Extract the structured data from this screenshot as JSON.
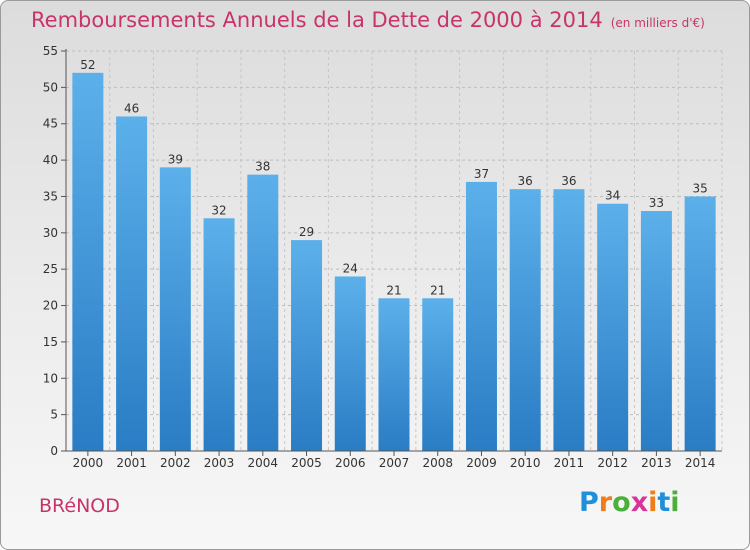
{
  "title": "Remboursements Annuels de la Dette de 2000 à 2014",
  "unit": "(en milliers d'€)",
  "town": "BRéNOD",
  "logo": {
    "letters": [
      "P",
      "r",
      "o",
      "x",
      "i",
      "t",
      "i"
    ],
    "colors": [
      "#1f8fd8",
      "#ef7d1a",
      "#4caf3a",
      "#d8349a",
      "#ef7d1a",
      "#1f8fd8",
      "#4caf3a"
    ]
  },
  "colors": {
    "accent": "#c8346a",
    "bar_top": "#5cb0ea",
    "bar_bottom": "#2a7cc4"
  },
  "chart_data": {
    "type": "bar",
    "categories": [
      "2000",
      "2001",
      "2002",
      "2003",
      "2004",
      "2005",
      "2006",
      "2007",
      "2008",
      "2009",
      "2010",
      "2011",
      "2012",
      "2013",
      "2014"
    ],
    "values": [
      52,
      46,
      39,
      32,
      38,
      29,
      24,
      21,
      21,
      37,
      36,
      36,
      34,
      33,
      35
    ],
    "yticks": [
      0,
      5,
      10,
      15,
      20,
      25,
      30,
      35,
      40,
      45,
      50,
      55
    ],
    "ylim": [
      0,
      55
    ],
    "grid": true,
    "title": "Remboursements Annuels de la Dette de 2000 à 2014",
    "xlabel": "",
    "ylabel": ""
  }
}
